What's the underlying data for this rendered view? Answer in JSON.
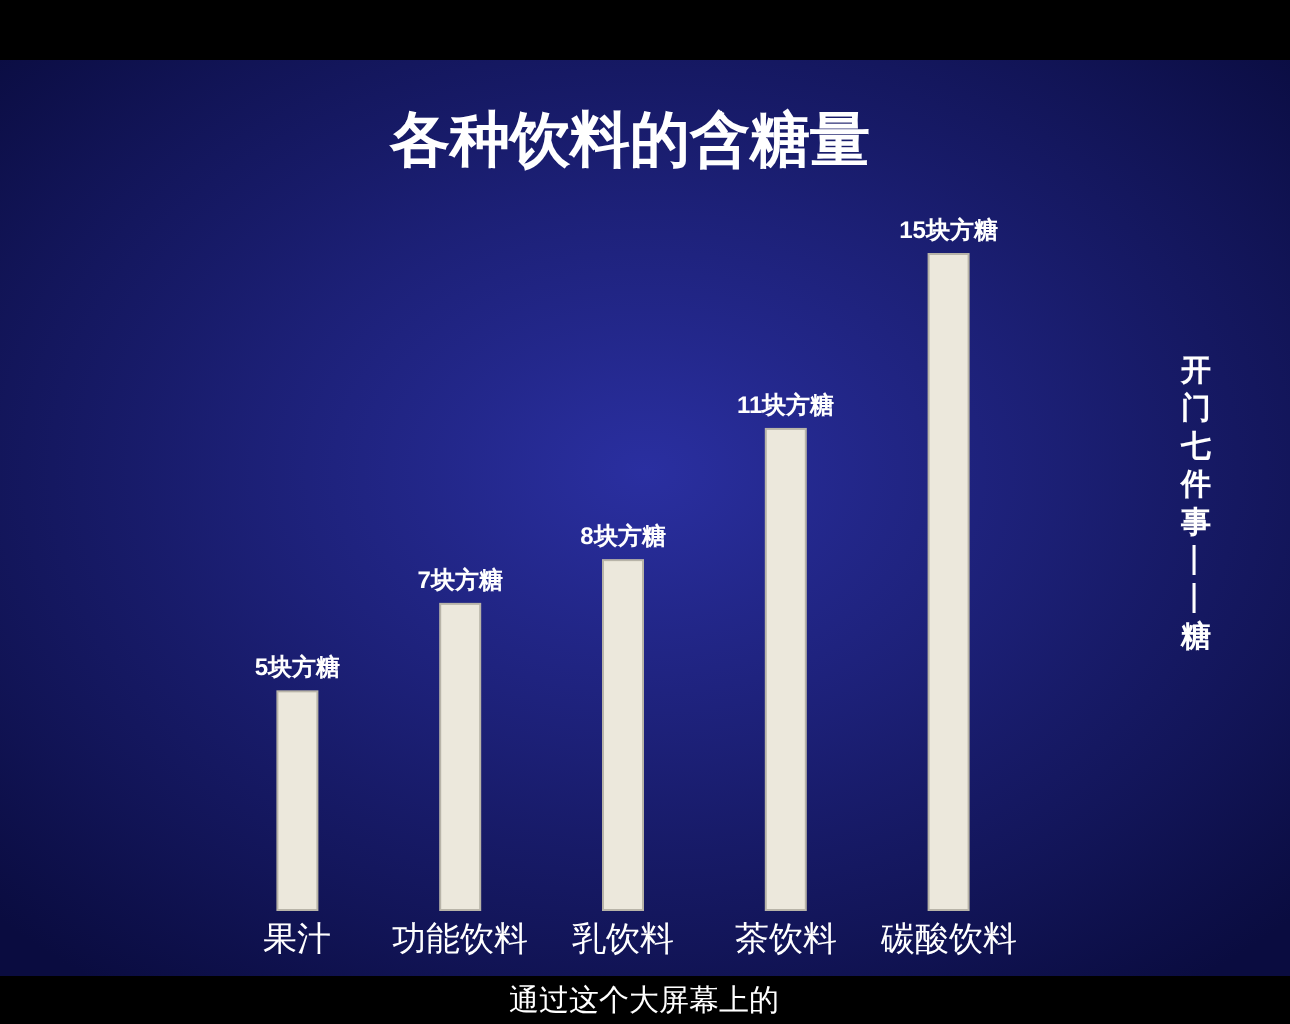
{
  "chart_data": {
    "type": "bar",
    "title": "各种饮料的含糖量",
    "categories": [
      "果汁",
      "功能饮料",
      "乳饮料",
      "茶饮料",
      "碳酸饮料"
    ],
    "values": [
      5,
      7,
      8,
      11,
      15
    ],
    "value_labels": [
      "5块方糖",
      "7块方糖",
      "8块方糖",
      "11块方糖",
      "15块方糖"
    ],
    "color": "#ece8dc",
    "annotations": [
      "开门七件事——糖",
      "通过这个大屏幕上的"
    ]
  }
}
